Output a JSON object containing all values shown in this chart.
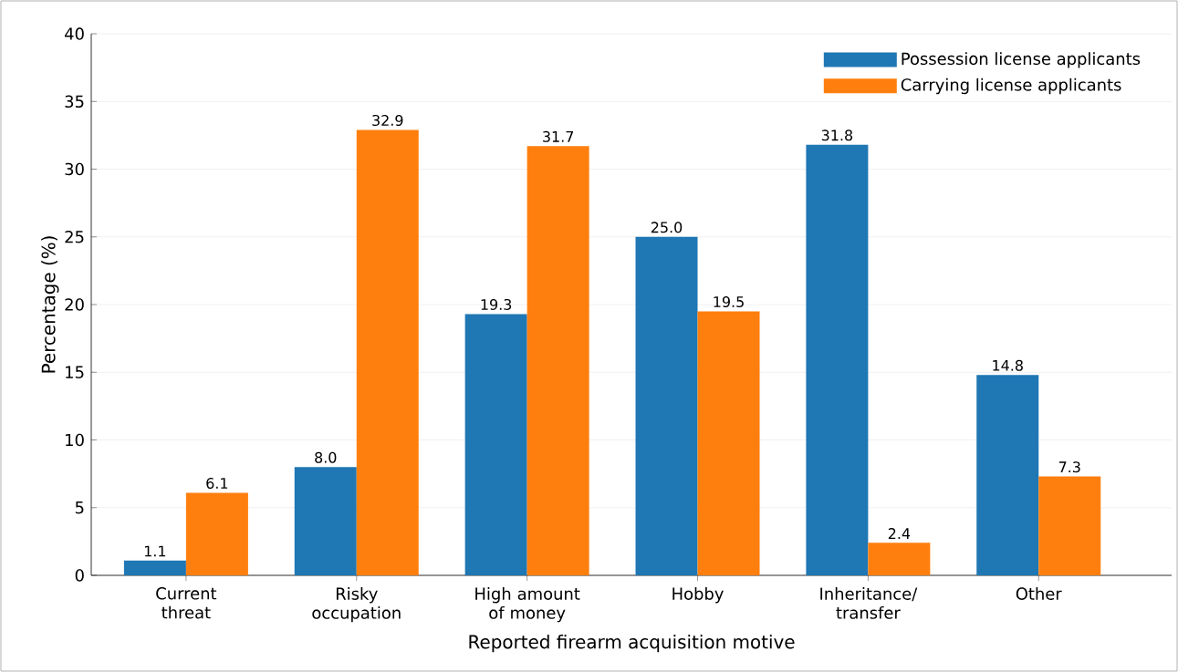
{
  "chart_data": {
    "type": "bar",
    "xlabel": "Reported firearm acquisition motive",
    "ylabel": "Percentage (%)",
    "categories": [
      "Current threat",
      "Risky occupation",
      "High amount of money",
      "Hobby",
      "Inheritance/ transfer",
      "Other"
    ],
    "series": [
      {
        "name": "Possession license applicants",
        "color": "#1f77b4",
        "values": [
          1.1,
          8.0,
          19.3,
          25.0,
          31.8,
          14.8
        ],
        "value_labels": [
          "1.1",
          "8.0",
          "19.3",
          "25.0",
          "31.8",
          "14.8"
        ]
      },
      {
        "name": "Carrying license applicants",
        "color": "#ff7f0e",
        "values": [
          6.1,
          32.9,
          31.7,
          19.5,
          2.4,
          7.3
        ],
        "value_labels": [
          "6.1",
          "32.9",
          "31.7",
          "19.5",
          "2.4",
          "7.3"
        ]
      }
    ],
    "ylim": [
      0,
      40
    ],
    "yticks": [
      0,
      5,
      10,
      15,
      20,
      25,
      30,
      35,
      40
    ],
    "grid": "y",
    "legend": "top right"
  }
}
